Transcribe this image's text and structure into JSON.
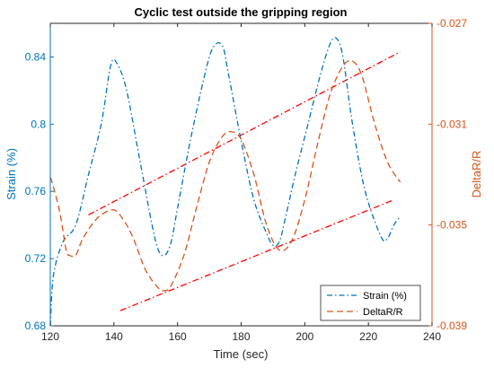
{
  "chart_data": {
    "type": "line",
    "title": "Cyclic test outside the gripping region",
    "xlabel": "Time (sec)",
    "ylabel_left": "Strain (%)",
    "ylabel_right": "DeltaR/R",
    "xlim": [
      120,
      240
    ],
    "ylim_left": [
      0.68,
      0.86
    ],
    "ylim_right": [
      -0.039,
      -0.027
    ],
    "xticks": [
      120,
      140,
      160,
      180,
      200,
      220,
      240
    ],
    "yticks_left": [
      0.68,
      0.72,
      0.76,
      0.8,
      0.84
    ],
    "yticks_left_labels": [
      "0.68",
      "0.72",
      "0.76",
      "0.8",
      "0.84"
    ],
    "yticks_right": [
      -0.039,
      -0.035,
      -0.031,
      -0.027
    ],
    "yticks_right_labels": [
      "-0.039",
      "-0.035",
      "-0.031",
      "-0.027"
    ],
    "grid": false,
    "legend_placement": "bottom-right",
    "colors": {
      "strain": "#0072BD",
      "deltaR": "#D95319",
      "trend": "#FF0000",
      "left_axis": "#0072BD",
      "right_axis": "#D95319"
    },
    "series": [
      {
        "name": "Strain (%)",
        "axis": "left",
        "style": "dash-dot",
        "x": [
          120,
          121,
          124,
          128,
          132,
          136,
          139,
          141,
          144,
          148,
          152,
          154,
          156,
          158,
          160,
          164,
          168,
          171,
          174,
          176,
          180,
          184,
          188,
          190,
          192,
          194,
          197,
          201,
          205,
          208,
          210,
          212,
          215,
          219,
          224,
          226,
          228,
          230
        ],
        "y": [
          0.68,
          0.71,
          0.73,
          0.74,
          0.77,
          0.8,
          0.835,
          0.836,
          0.82,
          0.78,
          0.74,
          0.725,
          0.722,
          0.73,
          0.75,
          0.79,
          0.825,
          0.845,
          0.847,
          0.83,
          0.79,
          0.755,
          0.735,
          0.728,
          0.73,
          0.745,
          0.77,
          0.8,
          0.83,
          0.848,
          0.851,
          0.84,
          0.8,
          0.76,
          0.733,
          0.732,
          0.74,
          0.745
        ]
      },
      {
        "name": "DeltaR/R",
        "axis": "right",
        "style": "dashed",
        "x": [
          120,
          121,
          123,
          125,
          126,
          128,
          130,
          133,
          136,
          140,
          143,
          146,
          150,
          154,
          156,
          158,
          162,
          166,
          170,
          174,
          177,
          180,
          184,
          188,
          192,
          196,
          200,
          204,
          208,
          212,
          215,
          218,
          222,
          226,
          230
        ],
        "y": [
          -0.0331,
          -0.0335,
          -0.0345,
          -0.036,
          -0.0362,
          -0.0362,
          -0.0356,
          -0.035,
          -0.0346,
          -0.0344,
          -0.0348,
          -0.0355,
          -0.0368,
          -0.0375,
          -0.0376,
          -0.0374,
          -0.0362,
          -0.0343,
          -0.0325,
          -0.0315,
          -0.0313,
          -0.0316,
          -0.033,
          -0.035,
          -0.036,
          -0.0356,
          -0.034,
          -0.0318,
          -0.0298,
          -0.0287,
          -0.0285,
          -0.0291,
          -0.031,
          -0.0325,
          -0.0333
        ]
      }
    ],
    "trend_lines": [
      {
        "axis": "left",
        "x": [
          132,
          230
        ],
        "y": [
          0.746,
          0.843
        ]
      },
      {
        "axis": "left",
        "x": [
          142,
          228
        ],
        "y": [
          0.689,
          0.755
        ]
      }
    ]
  }
}
